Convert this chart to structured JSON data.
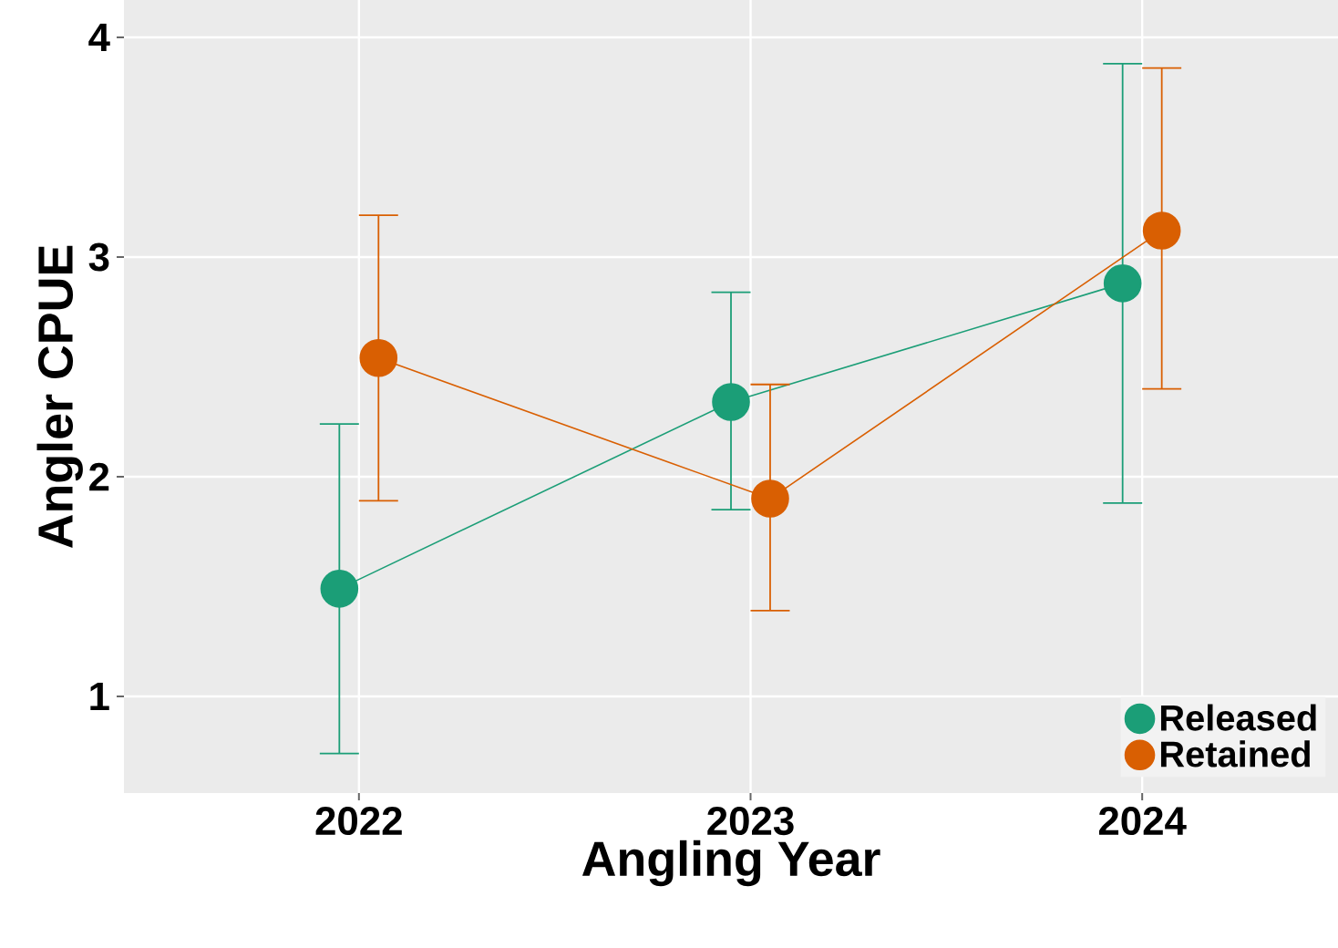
{
  "chart_data": {
    "type": "line",
    "xlabel": "Angling Year",
    "ylabel": "Angler CPUE",
    "categories": [
      "2022",
      "2023",
      "2024"
    ],
    "series": [
      {
        "name": "Released",
        "color": "#1b9e77",
        "values": [
          1.49,
          2.34,
          2.88
        ],
        "errors": [
          [
            0.74,
            2.24
          ],
          [
            1.85,
            2.84
          ],
          [
            1.88,
            3.88
          ]
        ]
      },
      {
        "name": "Retained",
        "color": "#d95f02",
        "values": [
          2.54,
          1.9,
          3.12
        ],
        "errors": [
          [
            1.89,
            3.19
          ],
          [
            1.39,
            2.42
          ],
          [
            2.4,
            3.86
          ]
        ]
      }
    ],
    "ylim": [
      0.56,
      4.17
    ],
    "yticks": [
      1,
      2,
      3,
      4
    ],
    "grid": true,
    "legend": "bottom right",
    "marker": "circle",
    "line_style": "solid"
  }
}
